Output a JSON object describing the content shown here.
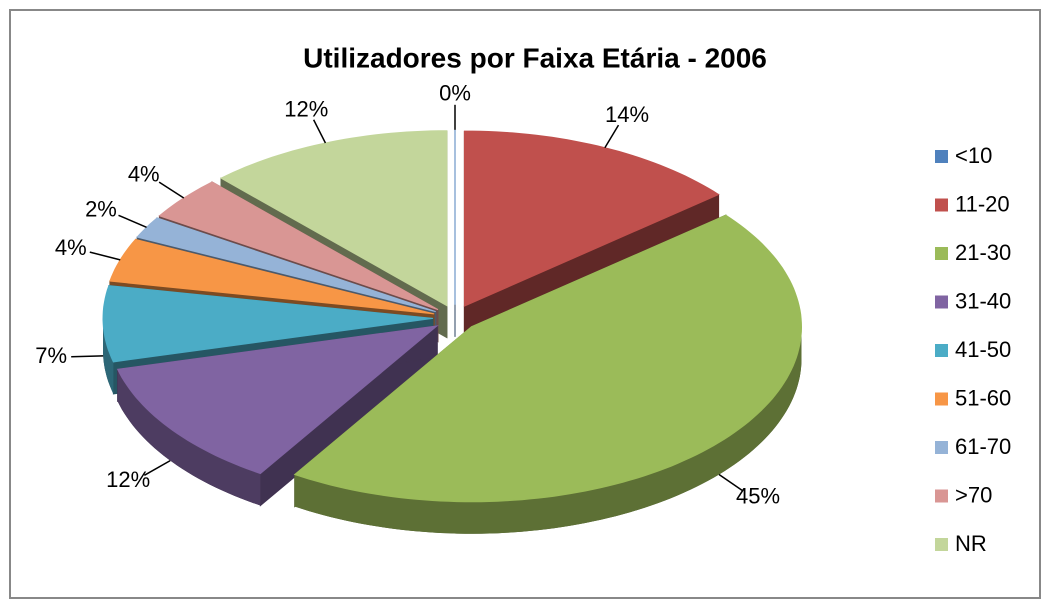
{
  "chart_data": {
    "type": "pie",
    "title": "Utilizadores por Faixa Etária - 2006",
    "categories": [
      "<10",
      "11-20",
      "21-30",
      "31-40",
      "41-50",
      "51-60",
      "61-70",
      ">70",
      "NR"
    ],
    "values": [
      0,
      14,
      45,
      12,
      7,
      4,
      2,
      4,
      12
    ],
    "value_labels": [
      "0%",
      "14%",
      "45%",
      "12%",
      "7%",
      "4%",
      "2%",
      "4%",
      "12%"
    ],
    "colors": [
      "#4f81bd",
      "#c0504d",
      "#9bbb59",
      "#8064a2",
      "#4bacc6",
      "#f79646",
      "#95b3d7",
      "#d99694",
      "#c3d69b"
    ],
    "legend": "right"
  }
}
